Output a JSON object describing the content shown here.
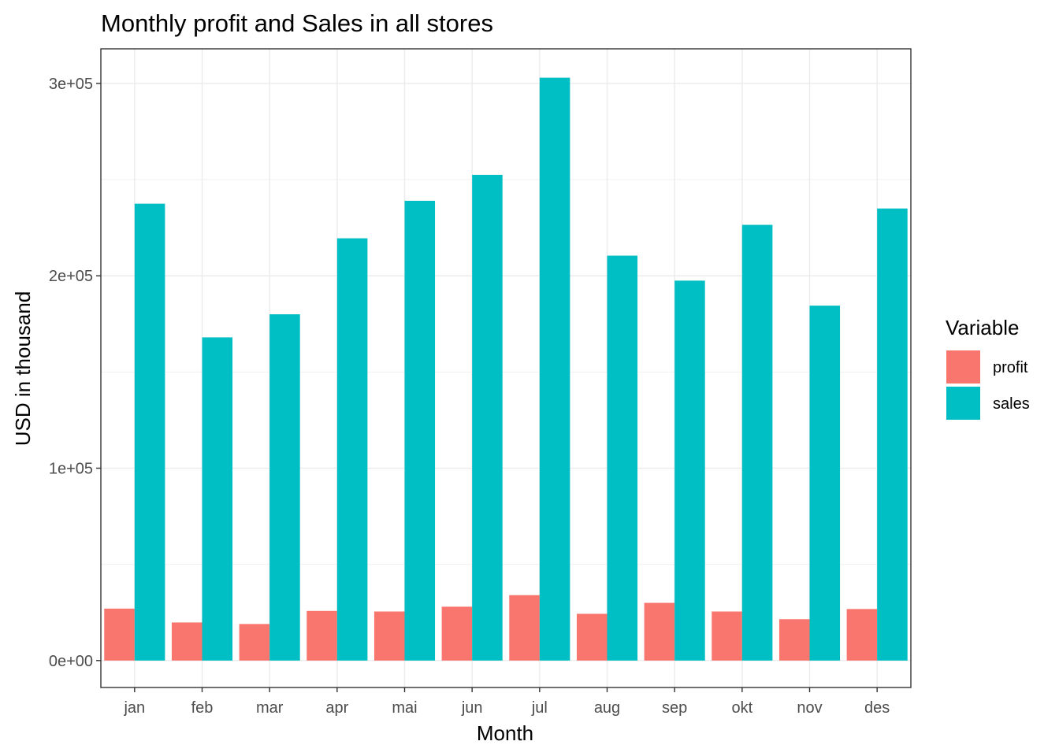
{
  "chart_data": {
    "type": "bar",
    "title": "Monthly profit and Sales in all stores",
    "xlabel": "Month",
    "ylabel": "USD in thousand",
    "categories": [
      "jan",
      "feb",
      "mar",
      "apr",
      "mai",
      "jun",
      "jul",
      "aug",
      "sep",
      "okt",
      "nov",
      "des"
    ],
    "series": [
      {
        "name": "profit",
        "color": "#F8766D",
        "values": [
          27000,
          19800,
          19000,
          25800,
          25500,
          28000,
          34000,
          24300,
          30000,
          25500,
          21500,
          26800
        ]
      },
      {
        "name": "sales",
        "color": "#00BFC4",
        "values": [
          237500,
          168000,
          180000,
          219500,
          239000,
          252500,
          303000,
          210500,
          197500,
          226500,
          184500,
          235000
        ]
      }
    ],
    "ylim": [
      -14000,
      318000
    ],
    "yticks": [
      0,
      100000,
      200000,
      300000
    ],
    "ytick_labels": [
      "0e+00",
      "1e+05",
      "2e+05",
      "3e+05"
    ],
    "grid": true,
    "legend": {
      "title": "Variable",
      "position": "right",
      "labels": [
        "profit",
        "sales"
      ]
    }
  }
}
